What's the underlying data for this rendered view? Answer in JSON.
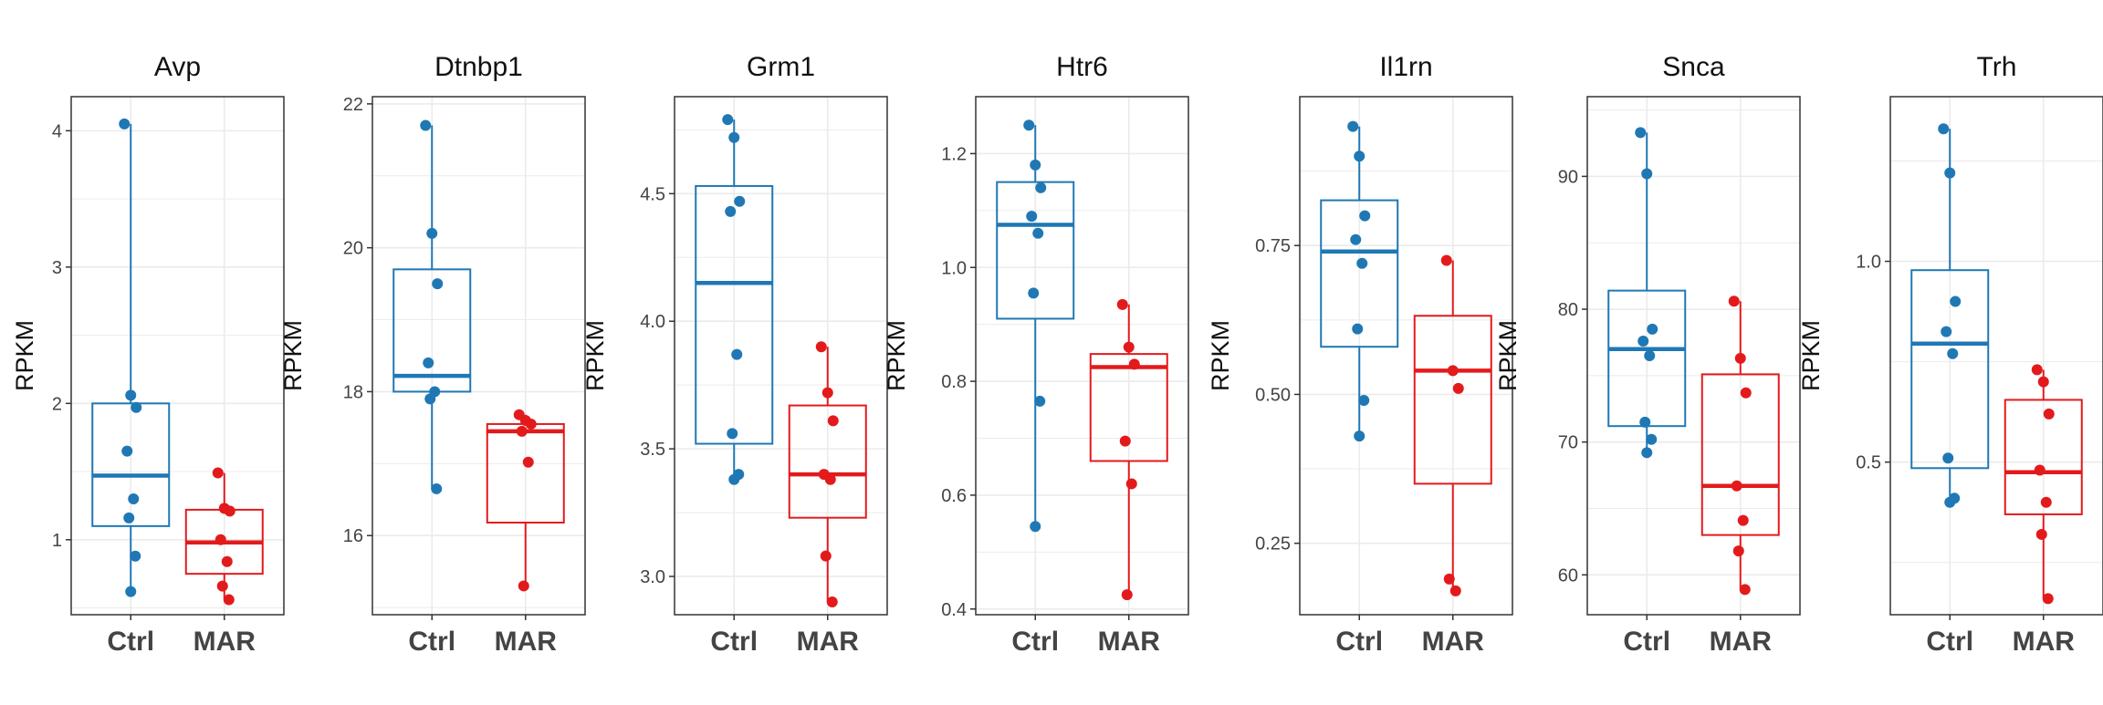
{
  "chart_data": {
    "type": "box",
    "groups": [
      "Ctrl",
      "MAR"
    ],
    "colors": {
      "Ctrl": "#1F78B4",
      "MAR": "#E31A1C",
      "grid": "#EBEBEB",
      "frame": "#333333"
    },
    "grid": true,
    "panels": [
      {
        "title": "Avp",
        "ylabel": "RPKM",
        "ylim": [
          0.45,
          4.25
        ],
        "yticks": [
          1,
          2,
          3,
          4
        ],
        "boxes": [
          {
            "group": "Ctrl",
            "q1": 1.1,
            "median": 1.47,
            "q3": 2.0,
            "whisker_low": 0.62,
            "whisker_high": 4.05,
            "points": [
              4.05,
              2.06,
              1.97,
              1.65,
              1.3,
              1.16,
              0.88,
              0.62
            ]
          },
          {
            "group": "MAR",
            "q1": 0.75,
            "median": 0.98,
            "q3": 1.22,
            "whisker_low": 0.56,
            "whisker_high": 1.49,
            "points": [
              1.49,
              1.23,
              1.21,
              1.0,
              0.84,
              0.66,
              0.56
            ]
          }
        ]
      },
      {
        "title": "Dtnbp1",
        "ylabel": "RPKM",
        "ylim": [
          14.9,
          22.1
        ],
        "yticks": [
          16,
          18,
          20,
          22
        ],
        "boxes": [
          {
            "group": "Ctrl",
            "q1": 18.0,
            "median": 18.22,
            "q3": 19.7,
            "whisker_low": 16.65,
            "whisker_high": 21.7,
            "points": [
              21.7,
              20.2,
              19.5,
              18.4,
              18.0,
              17.9,
              16.65
            ]
          },
          {
            "group": "MAR",
            "q1": 16.18,
            "median": 17.45,
            "q3": 17.55,
            "whisker_low": 15.3,
            "whisker_high": 17.68,
            "points": [
              17.68,
              17.6,
              17.55,
              17.45,
              17.02,
              15.3
            ]
          }
        ]
      },
      {
        "title": "Grm1",
        "ylabel": "RPKM",
        "ylim": [
          2.85,
          4.88
        ],
        "yticks": [
          3.0,
          3.5,
          4.0,
          4.5
        ],
        "yticklabels": [
          "3.0",
          "3.5",
          "4.0",
          "4.5"
        ],
        "boxes": [
          {
            "group": "Ctrl",
            "q1": 3.52,
            "median": 4.15,
            "q3": 4.53,
            "whisker_low": 3.38,
            "whisker_high": 4.79,
            "points": [
              4.79,
              4.72,
              4.47,
              4.43,
              3.87,
              3.56,
              3.4,
              3.38
            ]
          },
          {
            "group": "MAR",
            "q1": 3.23,
            "median": 3.4,
            "q3": 3.67,
            "whisker_low": 2.9,
            "whisker_high": 3.9,
            "points": [
              3.9,
              3.72,
              3.61,
              3.4,
              3.38,
              3.08,
              2.9
            ]
          }
        ]
      },
      {
        "title": "Htr6",
        "ylabel": "RPKM",
        "ylim": [
          0.39,
          1.3
        ],
        "yticks": [
          0.4,
          0.6,
          0.8,
          1.0,
          1.2
        ],
        "yticklabels": [
          "0.4",
          "0.6",
          "0.8",
          "1.0",
          "1.2"
        ],
        "boxes": [
          {
            "group": "Ctrl",
            "q1": 0.91,
            "median": 1.075,
            "q3": 1.15,
            "whisker_low": 0.545,
            "whisker_high": 1.25,
            "points": [
              1.25,
              1.18,
              1.14,
              1.09,
              1.06,
              0.955,
              0.765,
              0.545
            ]
          },
          {
            "group": "MAR",
            "q1": 0.66,
            "median": 0.825,
            "q3": 0.848,
            "whisker_low": 0.425,
            "whisker_high": 0.935,
            "points": [
              0.935,
              0.86,
              0.83,
              0.695,
              0.62,
              0.425
            ]
          }
        ]
      },
      {
        "title": "Il1rn",
        "ylabel": "RPKM",
        "ylim": [
          0.13,
          1.0
        ],
        "yticks": [
          0.25,
          0.5,
          0.75
        ],
        "yticklabels": [
          "0.25",
          "0.50",
          "0.75"
        ],
        "boxes": [
          {
            "group": "Ctrl",
            "q1": 0.58,
            "median": 0.74,
            "q3": 0.826,
            "whisker_low": 0.43,
            "whisker_high": 0.95,
            "points": [
              0.95,
              0.9,
              0.8,
              0.76,
              0.72,
              0.61,
              0.49,
              0.43
            ]
          },
          {
            "group": "MAR",
            "q1": 0.35,
            "median": 0.54,
            "q3": 0.632,
            "whisker_low": 0.17,
            "whisker_high": 0.725,
            "points": [
              0.725,
              0.54,
              0.51,
              0.19,
              0.17
            ]
          }
        ]
      },
      {
        "title": "Snca",
        "ylabel": "RPKM",
        "ylim": [
          57,
          96
        ],
        "yticks": [
          60,
          70,
          80,
          90
        ],
        "boxes": [
          {
            "group": "Ctrl",
            "q1": 71.2,
            "median": 77.0,
            "q3": 81.4,
            "whisker_low": 69.2,
            "whisker_high": 93.3,
            "points": [
              93.3,
              90.2,
              78.5,
              77.6,
              76.5,
              71.5,
              70.2,
              69.2
            ]
          },
          {
            "group": "MAR",
            "q1": 63.0,
            "median": 66.7,
            "q3": 75.1,
            "whisker_low": 58.9,
            "whisker_high": 80.6,
            "points": [
              80.6,
              76.3,
              73.7,
              66.7,
              64.1,
              61.8,
              58.9
            ]
          }
        ]
      },
      {
        "title": "Trh",
        "ylabel": "RPKM",
        "ylim": [
          0.12,
          1.41
        ],
        "yticks": [
          0.5,
          1.0
        ],
        "yticklabels": [
          "0.5",
          "1.0"
        ],
        "boxes": [
          {
            "group": "Ctrl",
            "q1": 0.485,
            "median": 0.795,
            "q3": 0.978,
            "whisker_low": 0.4,
            "whisker_high": 1.33,
            "points": [
              1.33,
              1.22,
              0.9,
              0.825,
              0.77,
              0.51,
              0.41,
              0.4
            ]
          },
          {
            "group": "MAR",
            "q1": 0.37,
            "median": 0.475,
            "q3": 0.655,
            "whisker_low": 0.16,
            "whisker_high": 0.73,
            "points": [
              0.73,
              0.7,
              0.62,
              0.48,
              0.4,
              0.32,
              0.16
            ]
          }
        ]
      }
    ]
  }
}
